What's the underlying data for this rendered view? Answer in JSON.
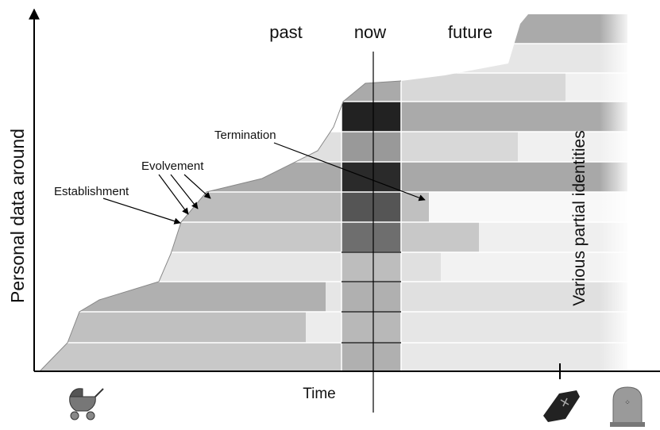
{
  "header": {
    "past": "past",
    "now": "now",
    "future": "future"
  },
  "annotations": {
    "termination": "Termination",
    "evolvement": "Evolvement",
    "establishment": "Establishment"
  },
  "axes": {
    "y_label": "Personal data around",
    "x_label": "Time"
  },
  "side_label": "Various partial identities"
}
